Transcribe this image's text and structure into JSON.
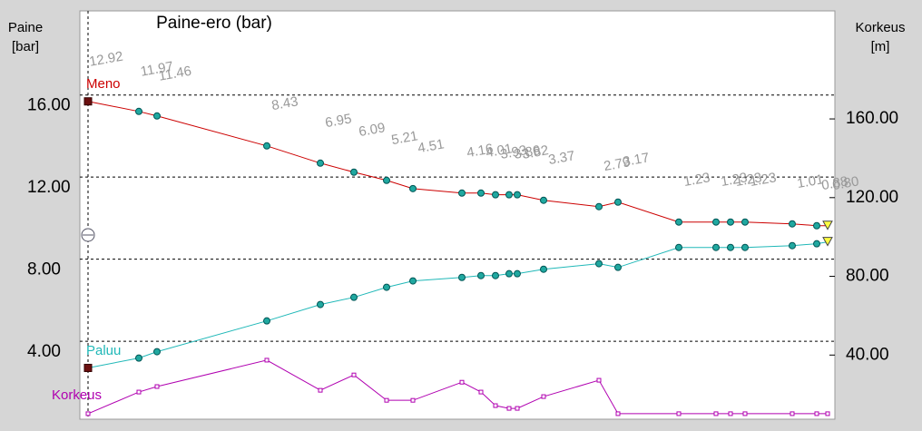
{
  "chart_data": {
    "type": "line",
    "title": "Paine-ero (bar)",
    "ylabel": [
      "Paine",
      "[bar]"
    ],
    "y2label": [
      "Korkeus",
      "[m]"
    ],
    "x": [
      0,
      56,
      76,
      197,
      256,
      293,
      329,
      358,
      412,
      433,
      449,
      464,
      473,
      502,
      563,
      584,
      651,
      692,
      708,
      724,
      776,
      803,
      815
    ],
    "xlim": [
      -9,
      823
    ],
    "ylim": [
      0.2,
      20.1
    ],
    "yticks": [
      {
        "value": 4,
        "label": "4.00"
      },
      {
        "value": 8,
        "label": "8.00"
      },
      {
        "value": 12,
        "label": "12.00"
      },
      {
        "value": 16,
        "label": "16.00"
      }
    ],
    "y2lim": [
      7.4,
      214.9
    ],
    "y2ticks": [
      {
        "value": 40,
        "label": "40.00"
      },
      {
        "value": 80,
        "label": "80.00"
      },
      {
        "value": 120,
        "label": "120.00"
      },
      {
        "value": 160,
        "label": "160.00"
      }
    ],
    "grid": true,
    "series": [
      {
        "name": "Meno",
        "color": "#cc0000",
        "values": [
          15.69,
          15.2,
          14.98,
          13.52,
          12.68,
          12.24,
          11.84,
          11.44,
          11.22,
          11.22,
          11.14,
          11.14,
          11.14,
          10.87,
          10.56,
          10.78,
          9.81,
          9.81,
          9.81,
          9.81,
          9.72,
          9.63,
          9.63
        ]
      },
      {
        "name": "Paluu",
        "color": "#20b8b8",
        "values": [
          2.7,
          3.18,
          3.49,
          4.99,
          5.79,
          6.14,
          6.63,
          6.94,
          7.11,
          7.2,
          7.2,
          7.29,
          7.29,
          7.51,
          7.78,
          7.6,
          8.57,
          8.57,
          8.57,
          8.57,
          8.66,
          8.75,
          8.84
        ]
      },
      {
        "name": "Korkeus",
        "color": "#b000b0",
        "axis": "y2",
        "values": [
          10.2,
          21.2,
          24.0,
          37.4,
          22.1,
          29.9,
          17.0,
          17.0,
          26.2,
          21.2,
          14.3,
          12.9,
          12.9,
          18.9,
          27.2,
          10.2,
          10.2,
          10.2,
          10.2,
          10.2,
          10.2,
          10.2,
          10.2
        ]
      }
    ],
    "diff_labels": [
      12.92,
      11.97,
      11.46,
      8.43,
      6.95,
      6.09,
      5.21,
      4.51,
      4.16,
      4.01,
      3.93,
      3.86,
      3.82,
      3.37,
      2.79,
      3.17,
      1.23,
      1.23,
      1.23,
      1.23,
      1.01,
      0.88,
      {
        "value": 0.8,
        "label": "0.80"
      }
    ]
  }
}
